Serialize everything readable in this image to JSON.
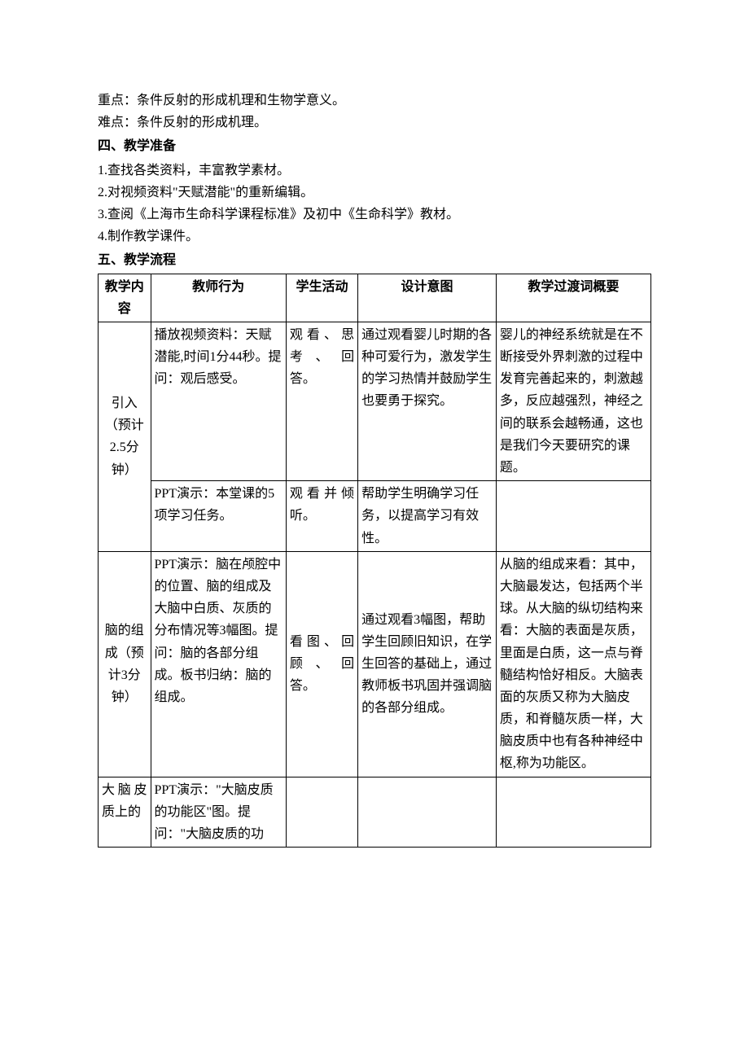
{
  "intro": {
    "line1": "重点：条件反射的形成机理和生物学意义。",
    "line2": "难点：条件反射的形成机理。"
  },
  "section4": {
    "title": "四、教学准备",
    "items": [
      "1.查找各类资料，丰富教学素材。",
      "2.对视频资料\"天赋潜能\"的重新编辑。",
      "3.查阅《上海市生命科学课程标准》及初中《生命科学》教材。",
      "4.制作教学课件。"
    ]
  },
  "section5": {
    "title": "五、教学流程",
    "headers": [
      "教学内容",
      "教师行为",
      "学生活动",
      "设计意图",
      "教学过渡词概要"
    ],
    "rows": [
      {
        "c1": "引入（预计2.5分钟）",
        "c1_rowspan": 2,
        "c2": "播放视频资料：天赋潜能,时间1分44秒。提问：观后感受。",
        "c3": "观看、思考、回答。",
        "c4": "通过观看婴儿时期的各种可爱行为，激发学生的学习热情并鼓励学生也要勇于探究。",
        "c5": "婴儿的神经系统就是在不断接受外界刺激的过程中发育完善起来的，刺激越多，反应越强烈，神经之间的联系会越畅通，这也是我们今天要研究的课题。",
        "c5_rowspan": 1
      },
      {
        "c2": "PPT演示：本堂课的5项学习任务。",
        "c3": "观看并倾听。",
        "c4": "帮助学生明确学习任务，以提高学习有效性。",
        "c5": ""
      },
      {
        "c1": "脑的组成（预计3分钟）",
        "c1_rowspan": 1,
        "c2": "PPT演示：脑在颅腔中的位置、脑的组成及大脑中白质、灰质的分布情况等3幅图。提问：脑的各部分组成。板书归纳：脑的组成。",
        "c3": "看图、回顾、回答。",
        "c4": "通过观看3幅图，帮助学生回顾旧知识，在学生回答的基础上，通过教师板书巩固并强调脑的各部分组成。",
        "c5": "从脑的组成来看：其中，大脑最发达，包括两个半球。从大脑的纵切结构来看：大脑的表面是灰质，里面是白质，这一点与脊髓结构恰好相反。大脑表面的灰质又称为大脑皮质，和脊髓灰质一样，大脑皮质中也有各种神经中枢,称为功能区。"
      },
      {
        "c1": "大脑皮质上的",
        "c1_rowspan": 1,
        "c2": "PPT演示：\"大脑皮质的功能区\"图。提问：\"大脑皮质的功",
        "c3": "",
        "c4": "",
        "c5": ""
      }
    ]
  }
}
